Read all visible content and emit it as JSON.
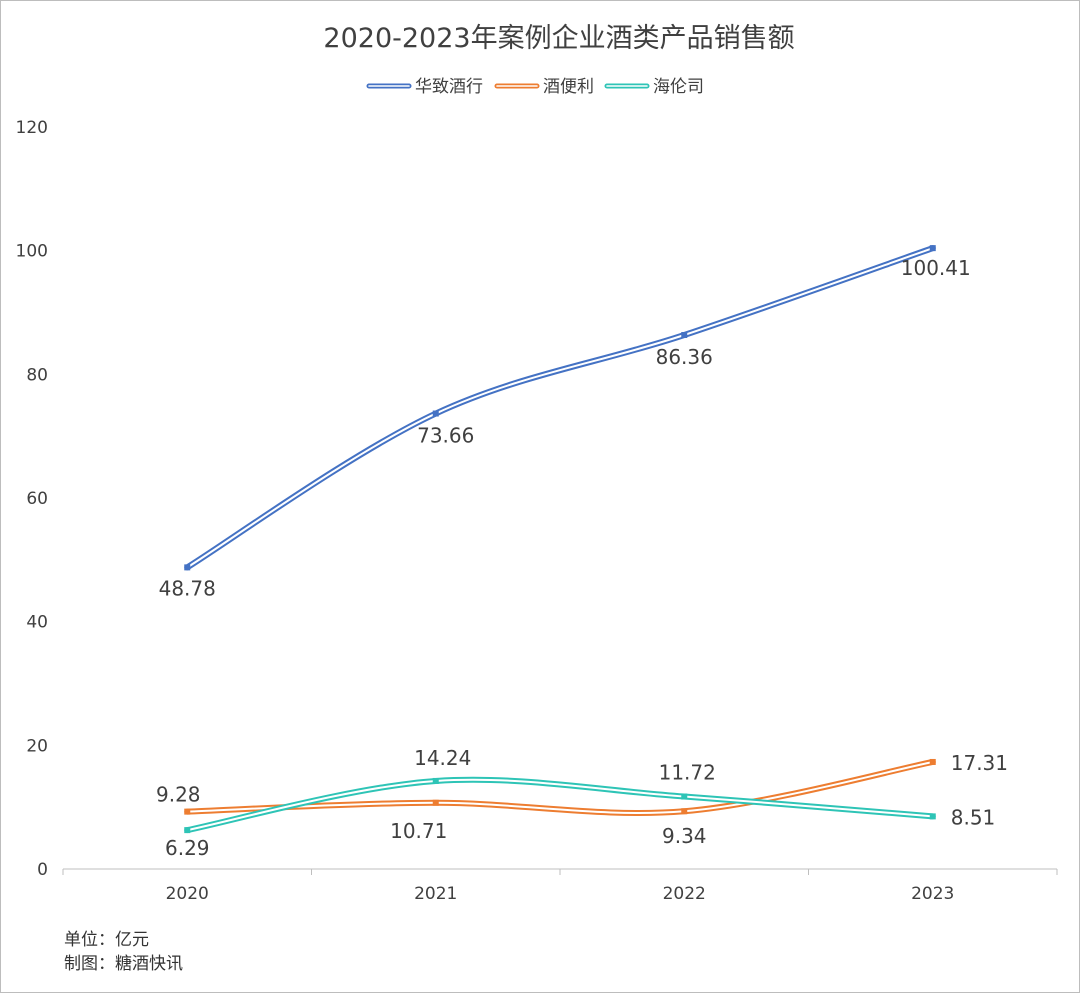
{
  "chart_data": {
    "type": "line",
    "title": "2020-2023年案例企业酒类产品销售额",
    "categories": [
      "2020",
      "2021",
      "2022",
      "2023"
    ],
    "ylim": [
      0,
      120
    ],
    "yticks": [
      0,
      20,
      40,
      60,
      80,
      100,
      120
    ],
    "grid": false,
    "legend_position": "top",
    "series": [
      {
        "name": "华致酒行",
        "values": [
          48.78,
          73.66,
          86.36,
          100.41
        ],
        "color": "#4472c4",
        "labels": [
          "48.78",
          "73.66",
          "86.36",
          "100.41"
        ]
      },
      {
        "name": "酒便利",
        "values": [
          9.28,
          10.71,
          9.34,
          17.31
        ],
        "color": "#ed7d31",
        "labels": [
          "9.28",
          "10.71",
          "9.34",
          "17.31"
        ]
      },
      {
        "name": "海伦司",
        "values": [
          6.29,
          14.24,
          11.72,
          8.51
        ],
        "color": "#2ec4b6",
        "labels": [
          "6.29",
          "14.24",
          "11.72",
          "8.51"
        ]
      }
    ]
  },
  "notes": {
    "unit": "单位：亿元",
    "source": "制图：糖酒快讯"
  }
}
